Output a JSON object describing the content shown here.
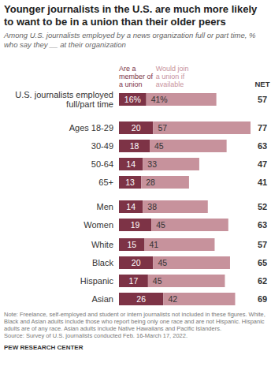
{
  "chart_data": {
    "type": "bar",
    "orientation": "horizontal",
    "stacked": true,
    "data_labels": true,
    "tick_labels": false,
    "title": "Younger journalists in the U.S. are much more likely to want to be in a union than their older peers",
    "subtitle": "Among U.S. journalists employed by a news organization full or part time, % who say they __ at their organization",
    "categories": [
      "U.S. journalists employed full/part time",
      "Ages 18-29",
      "30-49",
      "50-64",
      "65+",
      "Men",
      "Women",
      "White",
      "Black",
      "Hispanic",
      "Asian"
    ],
    "series": [
      {
        "name": "Are a member of a union",
        "color": "#7d3346",
        "values": [
          16,
          20,
          18,
          14,
          13,
          14,
          19,
          15,
          20,
          17,
          26
        ],
        "value_labels": [
          "16%",
          "20",
          "18",
          "14",
          "13",
          "14",
          "19",
          "15",
          "20",
          "17",
          "26"
        ]
      },
      {
        "name": "Would join a union if available",
        "color": "#c7929c",
        "values": [
          41,
          57,
          45,
          33,
          28,
          38,
          45,
          41,
          45,
          45,
          42
        ],
        "value_labels": [
          "41%",
          "57",
          "45",
          "33",
          "28",
          "38",
          "45",
          "41",
          "45",
          "45",
          "42"
        ]
      }
    ],
    "net": {
      "label": "NET",
      "values": [
        57,
        77,
        63,
        47,
        41,
        52,
        63,
        57,
        65,
        62,
        69
      ]
    },
    "xlim": [
      0,
      77
    ],
    "xticks": [],
    "note": "Note: Freelance, self-employed and student or intern journalists not included in these figures. White, Black and Asian adults include those who report being only one race and are not Hispanic. Hispanic adults are of any race. Asian adults include Native Hawaiians and Pacific Islanders.",
    "source": "Source: Survey of U.S. journalists conducted Feb. 16-March 17, 2022.",
    "credit": "PEW RESEARCH CENTER"
  }
}
